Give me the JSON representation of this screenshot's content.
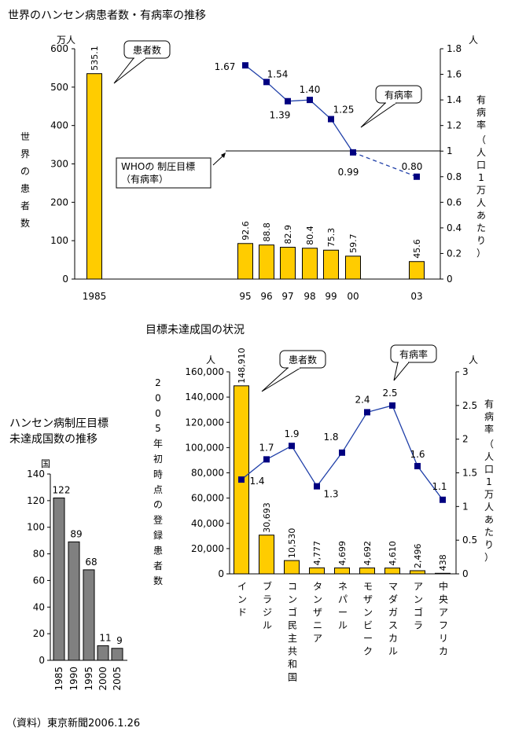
{
  "chart_data": [
    {
      "type": "bar+line",
      "title": "世界のハンセン病患者数・有病率の推移",
      "y_left_unit": "万人",
      "y_right_unit": "人",
      "ylabel_left": "世界の患者数",
      "ylabel_right": "有病率（人口1万人あたり）",
      "ylim_left": [
        0,
        600
      ],
      "ylim_right": [
        0,
        1.8
      ],
      "yticks_left": [
        "0",
        "100",
        "200",
        "300",
        "400",
        "500",
        "600"
      ],
      "yticks_right": [
        "0",
        "0.2",
        "0.4",
        "0.6",
        "0.8",
        "1",
        "1.2",
        "1.4",
        "1.6",
        "1.8"
      ],
      "bars": {
        "name": "患者数",
        "categories": [
          "1985",
          "95",
          "96",
          "97",
          "98",
          "99",
          "00",
          "03"
        ],
        "values": [
          535.1,
          92.6,
          88.8,
          82.9,
          80.4,
          75.3,
          59.7,
          45.6
        ],
        "labels": [
          "535.1",
          "92.6",
          "88.8",
          "82.9",
          "80.4",
          "75.3",
          "59.7",
          "45.6"
        ]
      },
      "line": {
        "name": "有病率",
        "categories": [
          "95",
          "96",
          "97",
          "98",
          "99",
          "00",
          "03"
        ],
        "values": [
          1.67,
          1.54,
          1.39,
          1.4,
          1.25,
          0.99,
          0.8
        ],
        "labels": [
          "1.67",
          "1.54",
          "1.39",
          "1.40",
          "1.25",
          "0.99",
          "0.80"
        ]
      },
      "target_line": {
        "label_line1": "WHOの 制圧目標",
        "label_line2": "（有病率）",
        "value": 1
      },
      "callouts": {
        "patients": "患者数",
        "rate": "有病率"
      }
    },
    {
      "type": "bar",
      "title_line1": "ハンセン病制圧目標",
      "title_line2": "未達成国数の推移",
      "y_unit": "国",
      "ylim": [
        0,
        140
      ],
      "yticks": [
        "0",
        "20",
        "40",
        "60",
        "80",
        "100",
        "120",
        "140"
      ],
      "categories": [
        "1985",
        "1990",
        "1995",
        "2000",
        "2005"
      ],
      "values": [
        122,
        89,
        68,
        11,
        9
      ],
      "labels": [
        "122",
        "89",
        "68",
        "11",
        "9"
      ]
    },
    {
      "type": "bar+line",
      "title": "目標未達成国の状況",
      "y_left_unit": "人",
      "y_right_unit": "人",
      "ylabel_left": "2005年初時点の登録患者数",
      "ylabel_right": "有病率（人口1万人あたり）",
      "ylim_left": [
        0,
        160000
      ],
      "ylim_right": [
        0,
        3
      ],
      "yticks_left": [
        "0",
        "20,000",
        "40,000",
        "60,000",
        "80,000",
        "100,000",
        "120,000",
        "140,000",
        "160,000"
      ],
      "yticks_right": [
        "0",
        "0.5",
        "1",
        "1.5",
        "2",
        "2.5",
        "3"
      ],
      "categories": [
        "インド",
        "ブラジル",
        "コンゴ民主共和国",
        "タンザニア",
        "ネパール",
        "モザンビーク",
        "マダガスカル",
        "アンゴラ",
        "中央アフリカ"
      ],
      "bars": {
        "name": "患者数",
        "values": [
          148910,
          30693,
          10530,
          4777,
          4699,
          4692,
          4610,
          2496,
          438
        ],
        "labels": [
          "148,910",
          "30,693",
          "10,530",
          "4,777",
          "4,699",
          "4,692",
          "4,610",
          "2,496",
          "438"
        ]
      },
      "line": {
        "name": "有病率",
        "values": [
          1.4,
          1.7,
          1.9,
          1.3,
          1.8,
          2.4,
          2.5,
          1.6,
          1.1
        ],
        "labels": [
          "1.4",
          "1.7",
          "1.9",
          "1.3",
          "1.8",
          "2.4",
          "2.5",
          "1.6",
          "1.1"
        ]
      },
      "callouts": {
        "patients": "患者数",
        "rate": "有病率"
      }
    }
  ],
  "source": "（資料）東京新聞2006.1.26"
}
